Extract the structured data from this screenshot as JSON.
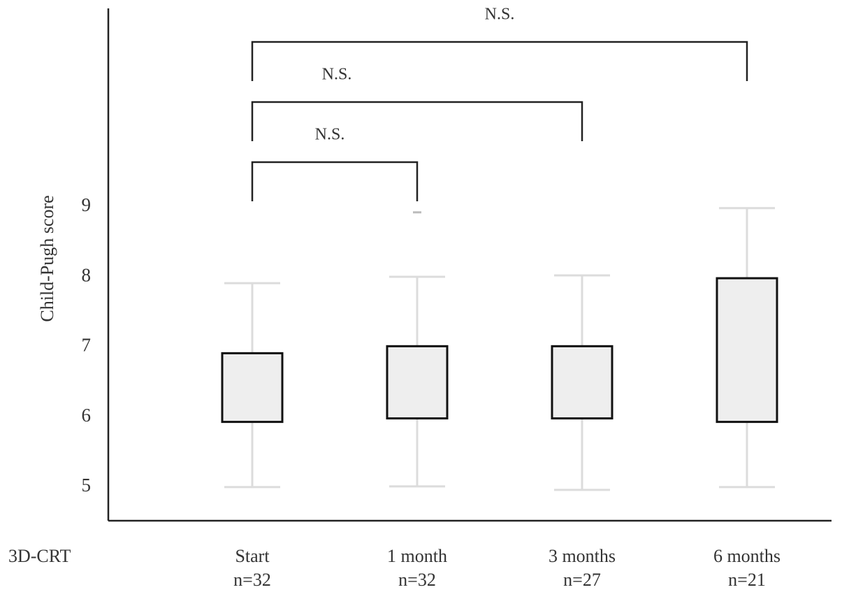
{
  "chart_data": {
    "type": "box",
    "y_label": "Child-Pugh score",
    "row_label": "3D-CRT",
    "categories": [
      "Start",
      "1 month",
      "3 months",
      "6 months"
    ],
    "n_labels": [
      "n=32",
      "n=32",
      "n=27",
      "n=21"
    ],
    "boxes": [
      {
        "min": 5,
        "q1": 5.93,
        "q3": 6.91,
        "max": 7.91,
        "outliers": []
      },
      {
        "min": 5.01,
        "q1": 5.98,
        "q3": 7.01,
        "max": 8,
        "outliers": [
          8.92
        ]
      },
      {
        "min": 4.96,
        "q1": 5.98,
        "q3": 7.01,
        "max": 8.02,
        "outliers": []
      },
      {
        "min": 5,
        "q1": 5.93,
        "q3": 7.98,
        "max": 8.98,
        "outliers": []
      }
    ],
    "comparisons": [
      {
        "from": 0,
        "to": 1,
        "label": "N.S."
      },
      {
        "from": 0,
        "to": 2,
        "label": "N.S."
      },
      {
        "from": 0,
        "to": 3,
        "label": "N.S."
      }
    ],
    "ylim": [
      4.52,
      11.83
    ],
    "yticks": [
      5,
      6,
      7,
      8,
      9
    ],
    "box_fill": "#eeeeee",
    "box_stroke": "#111111",
    "whisker_color": "#dcdcdc",
    "outlier_color": "#bbbbbb"
  }
}
